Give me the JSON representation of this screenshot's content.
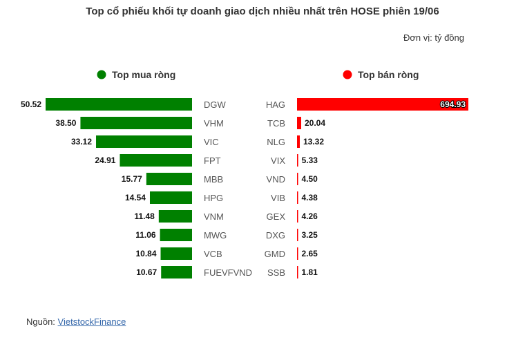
{
  "chart_data": {
    "type": "bar",
    "title": "Top cổ phiếu khối tự doanh giao dịch nhiều nhất trên HOSE phiên 19/06",
    "unit": "Đơn vị: tỷ đồng",
    "series": [
      {
        "name": "Top mua ròng",
        "color": "#008000",
        "categories": [
          "DGW",
          "VHM",
          "VIC",
          "FPT",
          "MBB",
          "HPG",
          "VNM",
          "MWG",
          "VCB",
          "FUEVFVND"
        ],
        "values": [
          50.52,
          38.5,
          33.12,
          24.91,
          15.77,
          14.54,
          11.48,
          11.06,
          10.84,
          10.67
        ],
        "labels": [
          "50.52",
          "38.50",
          "33.12",
          "24.91",
          "15.77",
          "14.54",
          "11.48",
          "11.06",
          "10.84",
          "10.67"
        ]
      },
      {
        "name": "Top bán ròng",
        "color": "#ff0000",
        "categories": [
          "HAG",
          "TCB",
          "NLG",
          "VIX",
          "VND",
          "VIB",
          "GEX",
          "DXG",
          "GMD",
          "SSB"
        ],
        "values": [
          694.93,
          20.04,
          13.32,
          5.33,
          4.5,
          4.38,
          4.26,
          3.25,
          2.65,
          1.81
        ],
        "labels": [
          "694.93",
          "20.04",
          "13.32",
          "5.33",
          "4.50",
          "4.38",
          "4.26",
          "3.25",
          "2.65",
          "1.81"
        ]
      }
    ]
  },
  "footer": {
    "source_label": "Nguồn: ",
    "source_link": "VietstockFinance"
  }
}
